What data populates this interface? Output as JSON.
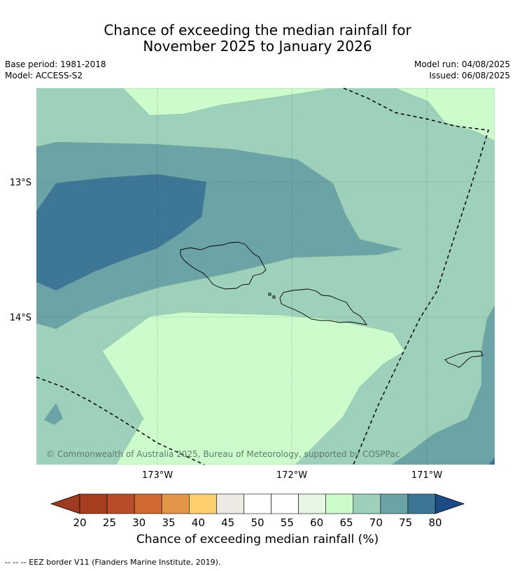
{
  "title": {
    "line1": "Chance of exceeding the median rainfall for",
    "line2": "November 2025 to January 2026"
  },
  "meta": {
    "base_period": "Base period: 1981-2018",
    "model": "Model: ACCESS-S2",
    "model_run": "Model run: 04/08/2025",
    "issued": "Issued: 06/08/2025"
  },
  "map": {
    "lat_labels": [
      "13°S",
      "14°S"
    ],
    "lon_labels": [
      "173°W",
      "172°W",
      "171°W"
    ],
    "copyright": "© Commonwealth of Australia 2025, Bureau of Meteorology, supported by COSPPac",
    "colors": {
      "c60_65": "#ccfccc",
      "c65_70": "#9ed1bc",
      "c70_75": "#6ca3a7",
      "c75_80": "#3e7696",
      "c80_plus": "#1c4b85"
    }
  },
  "colorbar": {
    "title": "Chance of exceeding median rainfall (%)",
    "ticks": [
      "20",
      "25",
      "30",
      "35",
      "40",
      "45",
      "50",
      "55",
      "60",
      "65",
      "70",
      "75",
      "80"
    ],
    "colors": [
      "#a53d1f",
      "#b84c28",
      "#d06832",
      "#e39548",
      "#fece6b",
      "#ede9e4",
      "#ffffff",
      "#ffffff",
      "#e6f7e6",
      "#ccfccc",
      "#9ed1bc",
      "#6ca3a7",
      "#3e7696"
    ],
    "low_color": "#9d3a1f",
    "high_color": "#1c4b85"
  },
  "footnote": "--  --  -- EEZ border V11 (Flanders Marine Institute, 2019)."
}
